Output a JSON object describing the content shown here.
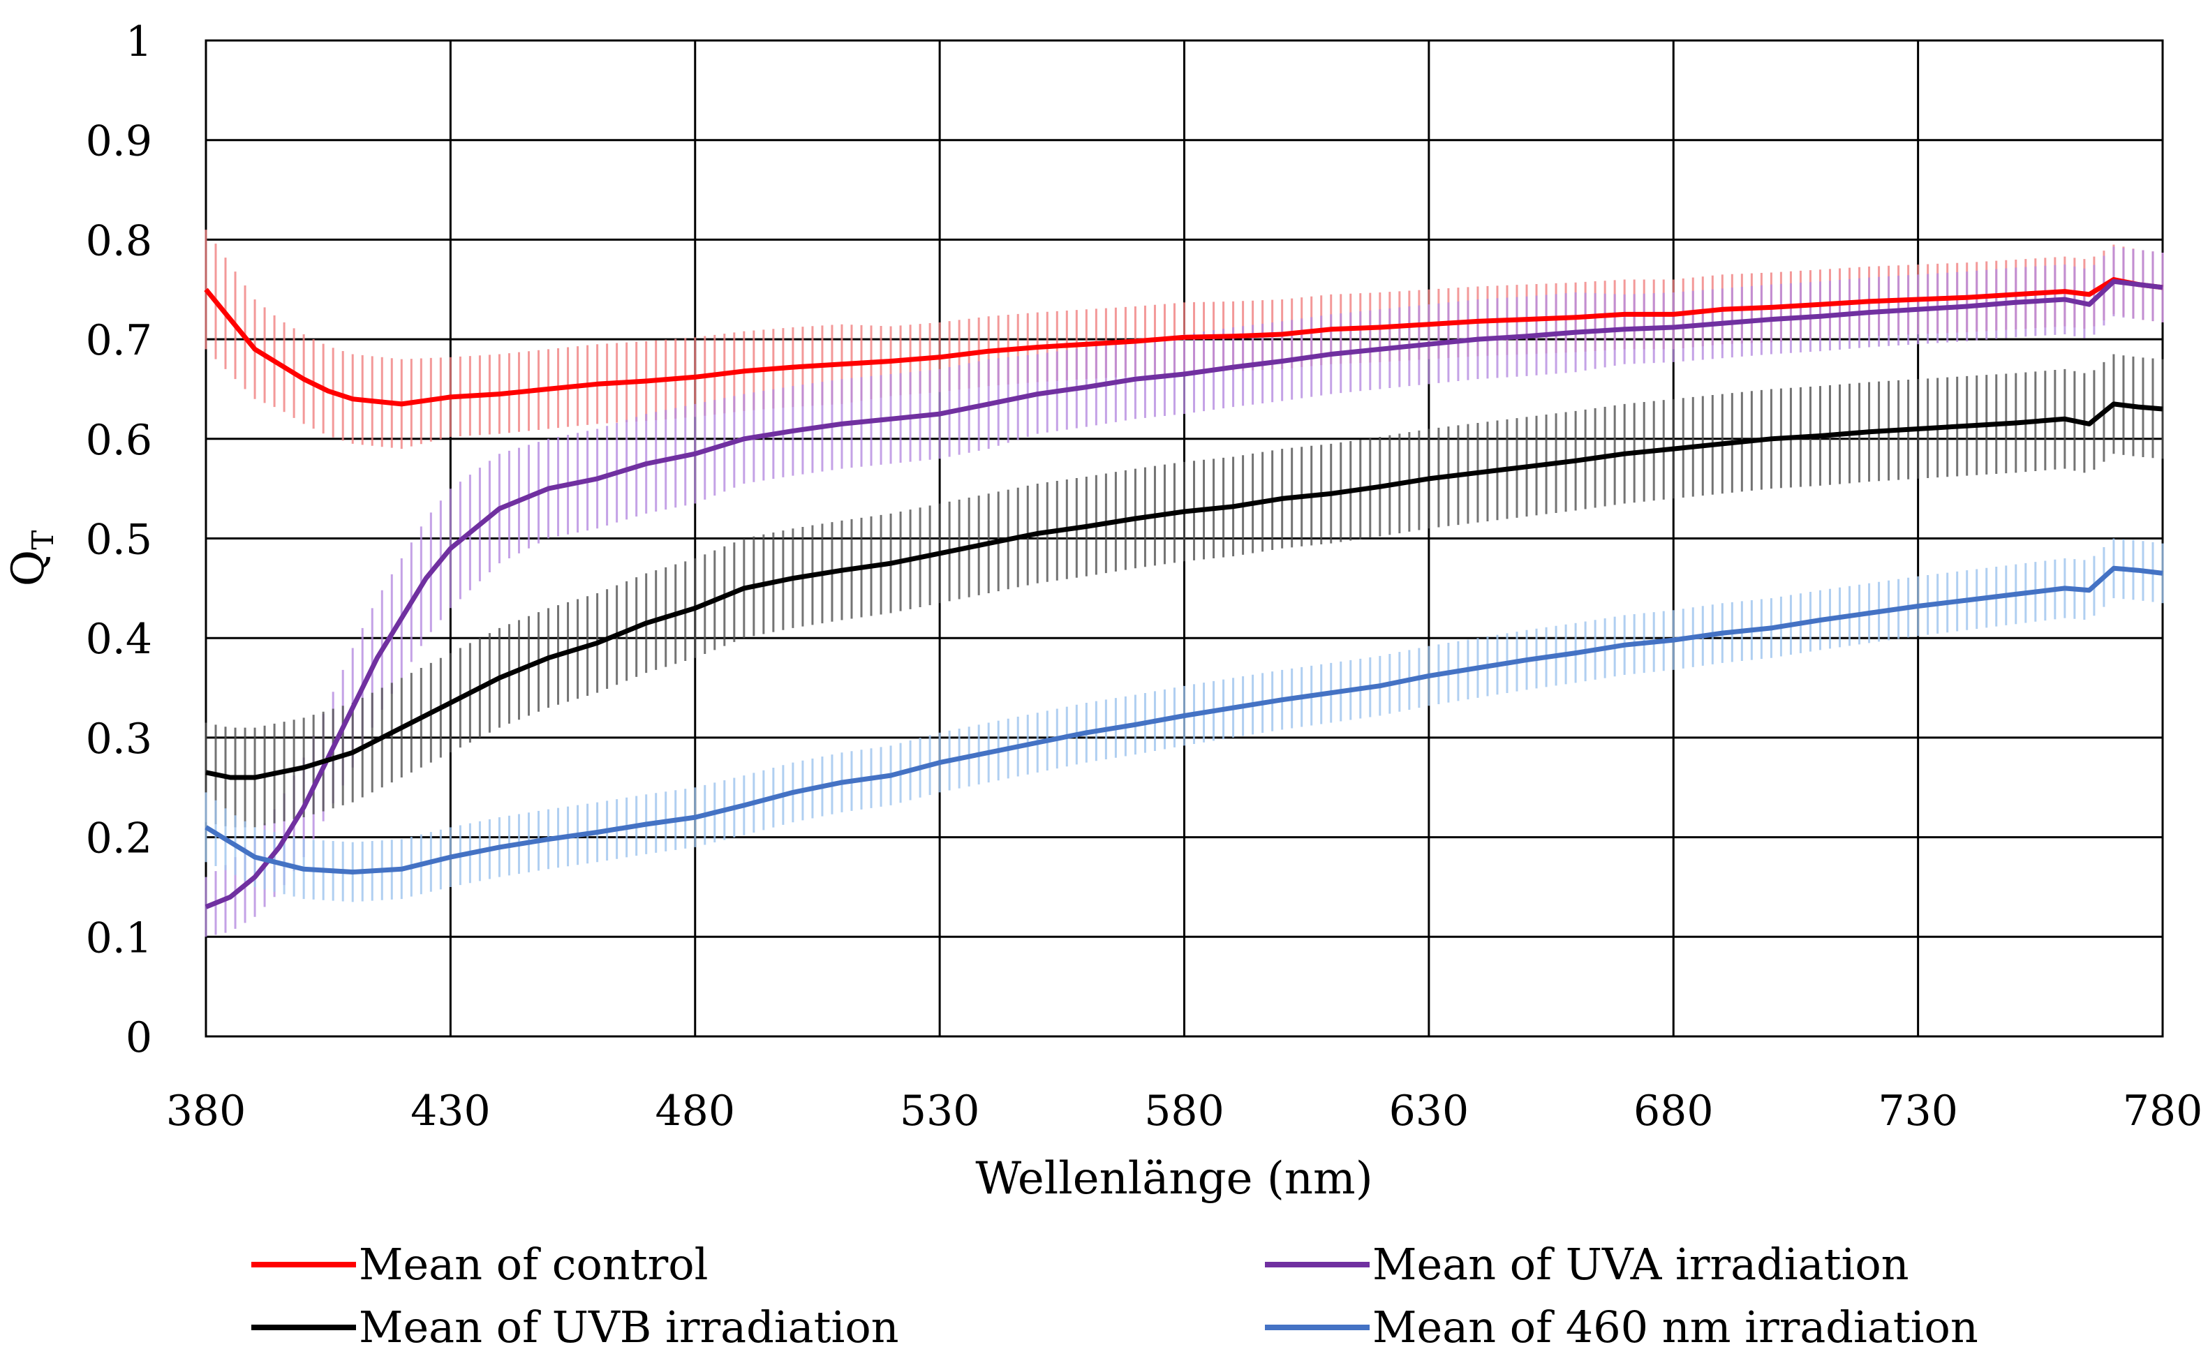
{
  "chart_data": {
    "type": "line",
    "title": "",
    "xlabel": "Wellenlänge (nm)",
    "ylabel": "Q",
    "ylabel_subscript": "T",
    "xlim": [
      380,
      780
    ],
    "ylim": [
      0,
      1
    ],
    "xticks": [
      380,
      430,
      480,
      530,
      580,
      630,
      680,
      730,
      780
    ],
    "yticks": [
      0,
      0.1,
      0.2,
      0.3,
      0.4,
      0.5,
      0.6,
      0.7,
      0.8,
      0.9,
      1
    ],
    "ytick_labels": [
      "0",
      "0.1",
      "0.2",
      "0.3",
      "0.4",
      "0.5",
      "0.6",
      "0.7",
      "0.8",
      "0.9",
      "1"
    ],
    "grid": true,
    "legend_position": "bottom",
    "error_bars": true,
    "series": [
      {
        "name": "Mean of control",
        "color": "#ff0000",
        "error_color": "#f08080",
        "x": [
          380,
          385,
          390,
          395,
          400,
          405,
          410,
          420,
          430,
          440,
          450,
          460,
          470,
          480,
          490,
          500,
          510,
          520,
          530,
          540,
          550,
          560,
          570,
          580,
          590,
          600,
          610,
          620,
          630,
          640,
          650,
          660,
          670,
          680,
          690,
          700,
          710,
          720,
          730,
          740,
          750,
          760,
          765,
          770,
          775,
          780
        ],
        "y": [
          0.75,
          0.72,
          0.69,
          0.675,
          0.66,
          0.648,
          0.64,
          0.635,
          0.642,
          0.645,
          0.65,
          0.655,
          0.658,
          0.662,
          0.668,
          0.672,
          0.675,
          0.678,
          0.682,
          0.688,
          0.692,
          0.695,
          0.698,
          0.702,
          0.703,
          0.705,
          0.71,
          0.712,
          0.715,
          0.718,
          0.72,
          0.722,
          0.725,
          0.725,
          0.73,
          0.732,
          0.735,
          0.738,
          0.74,
          0.742,
          0.745,
          0.748,
          0.745,
          0.76,
          0.755,
          0.752
        ],
        "err": [
          0.06,
          0.055,
          0.05,
          0.045,
          0.045,
          0.045,
          0.045,
          0.045,
          0.04,
          0.04,
          0.04,
          0.04,
          0.04,
          0.04,
          0.04,
          0.04,
          0.04,
          0.035,
          0.035,
          0.035,
          0.035,
          0.035,
          0.035,
          0.035,
          0.035,
          0.035,
          0.035,
          0.035,
          0.035,
          0.035,
          0.035,
          0.035,
          0.035,
          0.035,
          0.035,
          0.035,
          0.035,
          0.035,
          0.035,
          0.035,
          0.035,
          0.035,
          0.035,
          0.035,
          0.035,
          0.035
        ]
      },
      {
        "name": "Mean of UVA irradiation",
        "color": "#7030a0",
        "error_color": "#b58be0",
        "x": [
          380,
          385,
          390,
          395,
          400,
          405,
          410,
          415,
          420,
          425,
          430,
          440,
          450,
          460,
          470,
          480,
          490,
          500,
          510,
          520,
          530,
          540,
          550,
          560,
          570,
          580,
          590,
          600,
          610,
          620,
          630,
          640,
          650,
          660,
          670,
          680,
          690,
          700,
          710,
          720,
          730,
          740,
          750,
          760,
          765,
          770,
          775,
          780
        ],
        "y": [
          0.13,
          0.14,
          0.16,
          0.19,
          0.23,
          0.28,
          0.33,
          0.38,
          0.42,
          0.46,
          0.49,
          0.53,
          0.55,
          0.56,
          0.575,
          0.585,
          0.6,
          0.608,
          0.615,
          0.62,
          0.625,
          0.635,
          0.645,
          0.652,
          0.66,
          0.665,
          0.672,
          0.678,
          0.685,
          0.69,
          0.695,
          0.7,
          0.703,
          0.707,
          0.71,
          0.712,
          0.716,
          0.72,
          0.723,
          0.727,
          0.73,
          0.733,
          0.737,
          0.74,
          0.735,
          0.758,
          0.755,
          0.752
        ],
        "err": [
          0.03,
          0.035,
          0.04,
          0.045,
          0.05,
          0.055,
          0.06,
          0.06,
          0.06,
          0.06,
          0.06,
          0.055,
          0.05,
          0.05,
          0.05,
          0.05,
          0.045,
          0.045,
          0.045,
          0.045,
          0.045,
          0.045,
          0.04,
          0.04,
          0.04,
          0.04,
          0.04,
          0.04,
          0.04,
          0.04,
          0.04,
          0.04,
          0.04,
          0.04,
          0.035,
          0.035,
          0.035,
          0.035,
          0.035,
          0.035,
          0.035,
          0.035,
          0.035,
          0.035,
          0.035,
          0.035,
          0.035,
          0.035
        ]
      },
      {
        "name": "Mean of UVB irradiation",
        "color": "#000000",
        "error_color": "#505050",
        "x": [
          380,
          385,
          390,
          395,
          400,
          410,
          420,
          430,
          440,
          450,
          460,
          470,
          480,
          490,
          500,
          510,
          520,
          530,
          540,
          550,
          560,
          570,
          580,
          590,
          600,
          610,
          620,
          630,
          640,
          650,
          660,
          670,
          680,
          690,
          700,
          710,
          720,
          730,
          740,
          750,
          760,
          765,
          770,
          775,
          780
        ],
        "y": [
          0.265,
          0.26,
          0.26,
          0.265,
          0.27,
          0.285,
          0.31,
          0.335,
          0.36,
          0.38,
          0.395,
          0.415,
          0.43,
          0.45,
          0.46,
          0.468,
          0.475,
          0.485,
          0.495,
          0.505,
          0.512,
          0.52,
          0.527,
          0.532,
          0.54,
          0.545,
          0.552,
          0.56,
          0.566,
          0.572,
          0.578,
          0.585,
          0.59,
          0.595,
          0.6,
          0.603,
          0.607,
          0.61,
          0.613,
          0.616,
          0.62,
          0.615,
          0.635,
          0.632,
          0.63
        ],
        "err": [
          0.05,
          0.05,
          0.05,
          0.05,
          0.05,
          0.05,
          0.05,
          0.05,
          0.05,
          0.05,
          0.05,
          0.05,
          0.05,
          0.05,
          0.05,
          0.05,
          0.05,
          0.05,
          0.05,
          0.05,
          0.05,
          0.05,
          0.05,
          0.05,
          0.05,
          0.05,
          0.05,
          0.05,
          0.05,
          0.05,
          0.05,
          0.05,
          0.05,
          0.05,
          0.05,
          0.05,
          0.05,
          0.05,
          0.05,
          0.05,
          0.05,
          0.05,
          0.05,
          0.05,
          0.05
        ]
      },
      {
        "name": "Mean of 460 nm irradiation",
        "color": "#4472c4",
        "error_color": "#9cc3ee",
        "x": [
          380,
          385,
          390,
          400,
          410,
          420,
          430,
          440,
          450,
          460,
          470,
          480,
          490,
          500,
          510,
          520,
          530,
          540,
          550,
          560,
          570,
          580,
          590,
          600,
          610,
          620,
          630,
          640,
          650,
          660,
          670,
          680,
          690,
          700,
          710,
          720,
          730,
          740,
          750,
          760,
          765,
          770,
          775,
          780
        ],
        "y": [
          0.21,
          0.195,
          0.18,
          0.168,
          0.165,
          0.168,
          0.18,
          0.19,
          0.198,
          0.205,
          0.213,
          0.22,
          0.232,
          0.245,
          0.255,
          0.262,
          0.275,
          0.285,
          0.295,
          0.305,
          0.313,
          0.322,
          0.33,
          0.338,
          0.345,
          0.352,
          0.362,
          0.37,
          0.378,
          0.385,
          0.393,
          0.398,
          0.405,
          0.41,
          0.418,
          0.425,
          0.432,
          0.438,
          0.444,
          0.45,
          0.448,
          0.47,
          0.468,
          0.465
        ],
        "err": [
          0.035,
          0.03,
          0.03,
          0.03,
          0.03,
          0.03,
          0.03,
          0.03,
          0.03,
          0.03,
          0.03,
          0.03,
          0.03,
          0.03,
          0.03,
          0.03,
          0.03,
          0.03,
          0.03,
          0.03,
          0.03,
          0.03,
          0.03,
          0.03,
          0.03,
          0.03,
          0.03,
          0.03,
          0.03,
          0.03,
          0.03,
          0.03,
          0.03,
          0.03,
          0.03,
          0.03,
          0.03,
          0.03,
          0.03,
          0.03,
          0.03,
          0.03,
          0.03,
          0.03
        ]
      }
    ]
  },
  "legend": {
    "items": [
      {
        "label": "Mean of control",
        "color": "#ff0000"
      },
      {
        "label": "Mean of UVA irradiation",
        "color": "#7030a0"
      },
      {
        "label": "Mean of UVB irradiation",
        "color": "#000000"
      },
      {
        "label": "Mean of 460 nm irradiation",
        "color": "#4472c4"
      }
    ]
  }
}
